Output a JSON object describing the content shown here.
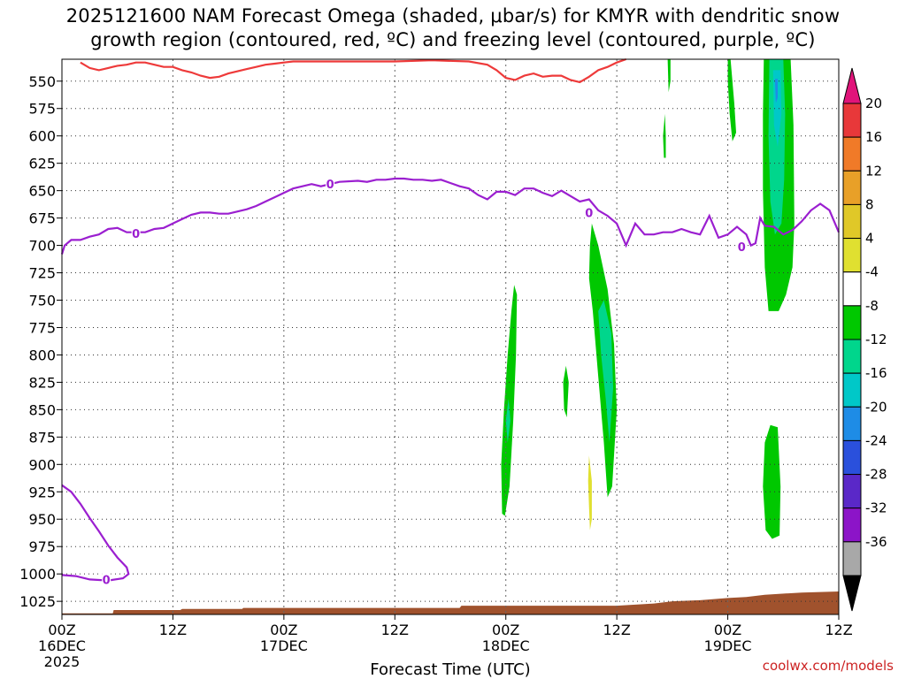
{
  "chart_data": {
    "type": "heatmap",
    "title_line1": "2025121600 NAM Forecast Omega (shaded, μbar/s) for KMYR with dendritic snow",
    "title_line2": "growth region (contoured, red, ºC) and freezing level (contoured, purple, ºC)",
    "xlabel": "Forecast Time (UTC)",
    "credit": "coolwx.com/models",
    "x_range_hours": [
      0,
      84
    ],
    "y_range_mb": [
      1037,
      530
    ],
    "y_ticks": [
      550,
      575,
      600,
      625,
      650,
      675,
      700,
      725,
      750,
      775,
      800,
      825,
      850,
      875,
      900,
      925,
      950,
      975,
      1000,
      1025
    ],
    "x_ticks": [
      {
        "hour": 0,
        "time": "00Z",
        "date": "16DEC",
        "year": "2025"
      },
      {
        "hour": 12,
        "time": "12Z",
        "date": "",
        "year": ""
      },
      {
        "hour": 24,
        "time": "00Z",
        "date": "17DEC",
        "year": ""
      },
      {
        "hour": 36,
        "time": "12Z",
        "date": "",
        "year": ""
      },
      {
        "hour": 48,
        "time": "00Z",
        "date": "18DEC",
        "year": ""
      },
      {
        "hour": 60,
        "time": "12Z",
        "date": "",
        "year": ""
      },
      {
        "hour": 72,
        "time": "00Z",
        "date": "19DEC",
        "year": ""
      },
      {
        "hour": 84,
        "time": "12Z",
        "date": "",
        "year": ""
      }
    ],
    "colorbar": {
      "labels": [
        "20",
        "16",
        "12",
        "8",
        "4",
        "-4",
        "-8",
        "-12",
        "-16",
        "-20",
        "-24",
        "-28",
        "-32",
        "-36"
      ],
      "colors": [
        "#e8383a",
        "#f07a28",
        "#e8a028",
        "#e0c828",
        "#e0e030",
        "#ffffff",
        "#00c800",
        "#00d68c",
        "#00c8c8",
        "#1e8ce6",
        "#2a50dc",
        "#5a28c8",
        "#8c14c8",
        "#a8a8a8"
      ],
      "over_color": "#e0147a",
      "under_color": "#000000"
    },
    "freezing_level_label": "0",
    "freezing_level": [
      [
        0,
        708
      ],
      [
        0.3,
        700
      ],
      [
        1,
        695
      ],
      [
        2,
        695
      ],
      [
        3,
        692
      ],
      [
        4,
        690
      ],
      [
        5,
        685
      ],
      [
        6,
        684
      ],
      [
        7,
        688
      ],
      [
        8,
        688
      ],
      [
        9,
        688
      ],
      [
        10,
        685
      ],
      [
        11,
        684
      ],
      [
        12,
        680
      ],
      [
        13,
        676
      ],
      [
        14,
        672
      ],
      [
        15,
        670
      ],
      [
        16,
        670
      ],
      [
        17,
        671
      ],
      [
        18,
        671
      ],
      [
        19,
        669
      ],
      [
        20,
        667
      ],
      [
        21,
        664
      ],
      [
        22,
        660
      ],
      [
        23,
        656
      ],
      [
        24,
        652
      ],
      [
        25,
        648
      ],
      [
        26,
        646
      ],
      [
        27,
        644
      ],
      [
        28,
        646
      ],
      [
        29,
        644
      ],
      [
        30,
        642
      ],
      [
        32,
        641
      ],
      [
        33,
        642
      ],
      [
        34,
        640
      ],
      [
        35,
        640
      ],
      [
        36,
        639
      ],
      [
        37,
        639
      ],
      [
        38,
        640
      ],
      [
        39,
        640
      ],
      [
        40,
        641
      ],
      [
        41,
        640
      ],
      [
        42,
        643
      ],
      [
        43,
        646
      ],
      [
        44,
        648
      ],
      [
        45,
        654
      ],
      [
        46,
        658
      ],
      [
        47,
        651
      ],
      [
        48,
        651
      ],
      [
        49,
        654
      ],
      [
        50,
        648
      ],
      [
        51,
        648
      ],
      [
        52,
        652
      ],
      [
        53,
        655
      ],
      [
        54,
        650
      ],
      [
        55,
        655
      ],
      [
        56,
        660
      ],
      [
        57,
        658
      ],
      [
        58,
        668
      ],
      [
        59,
        673
      ],
      [
        60,
        680
      ],
      [
        61,
        700
      ],
      [
        62,
        680
      ],
      [
        63,
        690
      ],
      [
        64,
        690
      ],
      [
        65,
        688
      ],
      [
        66,
        688
      ],
      [
        67,
        685
      ],
      [
        68,
        688
      ],
      [
        69,
        690
      ],
      [
        70,
        673
      ],
      [
        71,
        693
      ],
      [
        72,
        690
      ],
      [
        73,
        683
      ],
      [
        74,
        690
      ],
      [
        74.5,
        700
      ],
      [
        75,
        698
      ],
      [
        75.5,
        675
      ],
      [
        76,
        682
      ],
      [
        77,
        683
      ],
      [
        78,
        690
      ],
      [
        79,
        686
      ],
      [
        80,
        678
      ],
      [
        81,
        668
      ],
      [
        82,
        662
      ],
      [
        83,
        668
      ],
      [
        84,
        688
      ]
    ],
    "freezing_level_low": [
      [
        0,
        919
      ],
      [
        1,
        925
      ],
      [
        2,
        936
      ],
      [
        3,
        949
      ],
      [
        4,
        961
      ],
      [
        5,
        974
      ],
      [
        6,
        985
      ],
      [
        7,
        994
      ],
      [
        7.2,
        1000
      ],
      [
        6.6,
        1004
      ],
      [
        5,
        1006
      ],
      [
        3,
        1005
      ],
      [
        1.5,
        1002
      ],
      [
        0,
        1001
      ]
    ],
    "dgz_top": [
      [
        2,
        533
      ],
      [
        3,
        538
      ],
      [
        4,
        540
      ],
      [
        5,
        538
      ],
      [
        6,
        536
      ],
      [
        7,
        535
      ],
      [
        8,
        533
      ],
      [
        9,
        533
      ],
      [
        10,
        535
      ],
      [
        11,
        537
      ],
      [
        12,
        537
      ],
      [
        13,
        540
      ],
      [
        14,
        542
      ],
      [
        15,
        545
      ],
      [
        16,
        547
      ],
      [
        17,
        546
      ],
      [
        18,
        543
      ],
      [
        19,
        541
      ],
      [
        20,
        539
      ],
      [
        21,
        537
      ],
      [
        22,
        535
      ],
      [
        23,
        534
      ],
      [
        24,
        533
      ],
      [
        25,
        532
      ],
      [
        26,
        532
      ],
      [
        36,
        532
      ],
      [
        40,
        531
      ],
      [
        44,
        532
      ],
      [
        46,
        535
      ],
      [
        47,
        540
      ],
      [
        48,
        547
      ],
      [
        49,
        549
      ],
      [
        50,
        545
      ],
      [
        51,
        543
      ],
      [
        52,
        546
      ],
      [
        53,
        545
      ],
      [
        54,
        545
      ],
      [
        55,
        549
      ],
      [
        56,
        551
      ],
      [
        57,
        546
      ],
      [
        58,
        540
      ],
      [
        59,
        537
      ],
      [
        60,
        533
      ],
      [
        61,
        530
      ]
    ],
    "omega_regions": [
      {
        "value": -4,
        "color": "#00c800",
        "poly": [
          [
            47.6,
            945
          ],
          [
            47.5,
            900
          ],
          [
            47.8,
            850
          ],
          [
            48.2,
            800
          ],
          [
            48.6,
            760
          ],
          [
            48.9,
            736
          ],
          [
            49.2,
            745
          ],
          [
            49.1,
            800
          ],
          [
            48.8,
            860
          ],
          [
            48.4,
            920
          ],
          [
            47.9,
            947
          ]
        ]
      },
      {
        "value": -8,
        "color": "#00d68c",
        "poly": [
          [
            48.0,
            860
          ],
          [
            48.3,
            840
          ],
          [
            48.5,
            860
          ],
          [
            48.2,
            880
          ]
        ]
      },
      {
        "value": -4,
        "color": "#00c800",
        "poly": [
          [
            54.2,
            825
          ],
          [
            54.5,
            810
          ],
          [
            54.8,
            825
          ],
          [
            54.6,
            857
          ],
          [
            54.3,
            850
          ]
        ]
      },
      {
        "value": 4,
        "color": "#e0e030",
        "poly": [
          [
            57.0,
            940
          ],
          [
            56.9,
            915
          ],
          [
            57.0,
            892
          ],
          [
            57.3,
            915
          ],
          [
            57.3,
            950
          ],
          [
            57.1,
            960
          ]
        ]
      },
      {
        "value": -4,
        "color": "#00c800",
        "poly": [
          [
            57.1,
            700
          ],
          [
            57.3,
            680
          ],
          [
            58.0,
            700
          ],
          [
            59.0,
            740
          ],
          [
            59.7,
            790
          ],
          [
            60.0,
            850
          ],
          [
            59.5,
            920
          ],
          [
            59.0,
            930
          ],
          [
            58.6,
            880
          ],
          [
            58.0,
            820
          ],
          [
            57.4,
            760
          ],
          [
            57.0,
            730
          ]
        ]
      },
      {
        "value": -8,
        "color": "#00d68c",
        "poly": [
          [
            58.0,
            760
          ],
          [
            58.6,
            750
          ],
          [
            59.4,
            780
          ],
          [
            59.6,
            830
          ],
          [
            59.2,
            880
          ],
          [
            58.8,
            840
          ],
          [
            58.3,
            800
          ]
        ]
      },
      {
        "value": -4,
        "color": "#00c800",
        "poly": [
          [
            65.1,
            620
          ],
          [
            65.0,
            600
          ],
          [
            65.2,
            580
          ],
          [
            65.3,
            600
          ],
          [
            65.3,
            620
          ]
        ]
      },
      {
        "value": -4,
        "color": "#00c800",
        "poly": [
          [
            72.0,
            530
          ],
          [
            72.3,
            530
          ],
          [
            72.7,
            570
          ],
          [
            72.9,
            597
          ],
          [
            72.5,
            605
          ],
          [
            72.2,
            580
          ],
          [
            72.0,
            550
          ]
        ]
      },
      {
        "value": -4,
        "color": "#00c800",
        "poly": [
          [
            75.9,
            530
          ],
          [
            78.8,
            530
          ],
          [
            79.1,
            590
          ],
          [
            79.2,
            680
          ],
          [
            79.0,
            720
          ],
          [
            78.3,
            745
          ],
          [
            77.5,
            760
          ],
          [
            76.4,
            760
          ],
          [
            76.0,
            720
          ],
          [
            75.8,
            650
          ],
          [
            75.8,
            580
          ]
        ]
      },
      {
        "value": -8,
        "color": "#00d68c",
        "poly": [
          [
            76.5,
            530
          ],
          [
            78.0,
            530
          ],
          [
            78.2,
            580
          ],
          [
            78.1,
            640
          ],
          [
            77.8,
            680
          ],
          [
            77.1,
            690
          ],
          [
            76.6,
            660
          ],
          [
            76.4,
            600
          ]
        ]
      },
      {
        "value": -12,
        "color": "#00c8c8",
        "poly": [
          [
            76.9,
            540
          ],
          [
            77.7,
            540
          ],
          [
            77.8,
            580
          ],
          [
            77.4,
            610
          ],
          [
            77.0,
            590
          ]
        ]
      },
      {
        "value": -16,
        "color": "#1e8ce6",
        "poly": [
          [
            77.1,
            548
          ],
          [
            77.4,
            548
          ],
          [
            77.4,
            565
          ],
          [
            77.2,
            570
          ]
        ]
      },
      {
        "value": -4,
        "color": "#00c800",
        "poly": [
          [
            76.1,
            960
          ],
          [
            75.8,
            920
          ],
          [
            76.0,
            880
          ],
          [
            76.6,
            864
          ],
          [
            77.4,
            866
          ],
          [
            77.7,
            920
          ],
          [
            77.6,
            965
          ],
          [
            76.8,
            968
          ]
        ]
      },
      {
        "value": -4,
        "color": "#00c800",
        "poly": [
          [
            65.5,
            530
          ],
          [
            65.8,
            530
          ],
          [
            65.8,
            550
          ],
          [
            65.6,
            560
          ]
        ]
      }
    ],
    "terrain": [
      [
        0,
        1036
      ],
      [
        5.5,
        1036
      ],
      [
        5.6,
        1033
      ],
      [
        12.8,
        1033
      ],
      [
        13,
        1032
      ],
      [
        19.5,
        1032
      ],
      [
        19.6,
        1031
      ],
      [
        43,
        1031
      ],
      [
        43.2,
        1029
      ],
      [
        60,
        1029
      ],
      [
        64,
        1027
      ],
      [
        66,
        1025
      ],
      [
        69,
        1024
      ],
      [
        72,
        1022
      ],
      [
        74,
        1021
      ],
      [
        76,
        1019
      ],
      [
        80,
        1017
      ],
      [
        84,
        1016
      ]
    ]
  }
}
